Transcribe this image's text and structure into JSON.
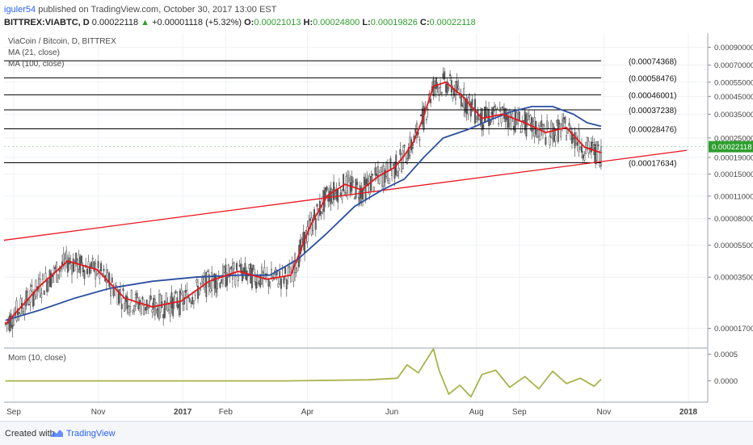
{
  "header": {
    "username": "iguler54",
    "published_text": " published on TradingView.com, October 30, 2017 13:00 EST",
    "symbol": "BITTREX:VIABTC, D",
    "last_price": "0.00022118",
    "change": "+0.00001118 (+5.32%)",
    "o_label": "O:",
    "o_value": "0.00021013",
    "h_label": "H:",
    "h_value": "0.00024800",
    "l_label": "L:",
    "l_value": "0.00019826",
    "c_label": "C:",
    "c_value": "0.00022118"
  },
  "legend": {
    "title": "ViaCoin / Bitcoin, D, BITTREX",
    "ma21": "MA (21, close)",
    "ma100": "MA (100, close)",
    "mom": "Mom (10, close)"
  },
  "footer": {
    "created_with": "Created with",
    "brand": "TradingView"
  },
  "colors": {
    "candle_up": "#3d3d3d",
    "candle_down": "#6a6a6a",
    "ma21": "#e8141c",
    "ma100": "#2b4fa0",
    "trendline": "#e8141c",
    "fib": "#000000",
    "momentum": "#a9b34a",
    "price_tag": "#2e9e2e"
  },
  "chart_data": [
    {
      "type": "line",
      "title": "ViaCoin / Bitcoin, D, BITTREX",
      "y_scale": "log",
      "ylim": [
        1.3e-05,
        0.0011
      ],
      "x_ticks": [
        "Sep",
        "Nov",
        "2017",
        "Feb",
        "Apr",
        "Jun",
        "Aug",
        "Sep",
        "Nov",
        "2018"
      ],
      "y_ticks": [
        "0.00090000",
        "0.00070000",
        "0.00055000",
        "0.00045000",
        "0.00035000",
        "0.00025000",
        "0.00019000",
        "0.00015000",
        "0.00011000",
        "0.00008000",
        "0.00005500",
        "0.00003500",
        "0.00001700"
      ],
      "last_price_label": "0.00022118",
      "levels": [
        {
          "label": "(0.00074368)",
          "value": 0.00074368
        },
        {
          "label": "(0.00058476)",
          "value": 0.00058476
        },
        {
          "label": "(0.00046001)",
          "value": 0.00046001
        },
        {
          "label": "(0.00037238)",
          "value": 0.00037238
        },
        {
          "label": "(0.00028476)",
          "value": 0.00028476
        },
        {
          "label": "(0.00017634)",
          "value": 0.00017634
        }
      ],
      "trendline": {
        "start": [
          "2016-08-25",
          5.9e-05
        ],
        "end": [
          "2017-12-31",
          0.00021
        ]
      },
      "series": [
        {
          "name": "MA (21, close)",
          "x": [
            "2016-08-26",
            "2016-09-20",
            "2016-10-10",
            "2016-10-31",
            "2016-11-20",
            "2016-12-10",
            "2016-12-31",
            "2017-01-20",
            "2017-02-10",
            "2017-03-03",
            "2017-03-20",
            "2017-04-03",
            "2017-04-15",
            "2017-04-28",
            "2017-05-10",
            "2017-05-22",
            "2017-06-03",
            "2017-06-10",
            "2017-06-17",
            "2017-06-24",
            "2017-07-01",
            "2017-07-10",
            "2017-07-22",
            "2017-08-05",
            "2017-08-20",
            "2017-09-05",
            "2017-09-20",
            "2017-10-05",
            "2017-10-18",
            "2017-10-30"
          ],
          "values": [
            1.8e-05,
            3.1e-05,
            4.4e-05,
            3.9e-05,
            2.6e-05,
            2.3e-05,
            2.5e-05,
            3.3e-05,
            3.8e-05,
            3.4e-05,
            3.6e-05,
            7.2e-05,
            0.00011,
            0.00013,
            0.00012,
            0.000145,
            0.000165,
            0.000195,
            0.00024,
            0.00034,
            0.00052,
            0.00055,
            0.00045,
            0.00033,
            0.00035,
            0.00031,
            0.00027,
            0.00029,
            0.00022,
            0.000203
          ]
        },
        {
          "name": "MA (100, close)",
          "x": [
            "2016-08-26",
            "2016-09-20",
            "2016-10-15",
            "2016-11-10",
            "2016-12-10",
            "2017-01-10",
            "2017-02-10",
            "2017-03-05",
            "2017-03-25",
            "2017-04-15",
            "2017-05-05",
            "2017-05-25",
            "2017-06-10",
            "2017-06-24",
            "2017-07-08",
            "2017-07-25",
            "2017-08-10",
            "2017-08-25",
            "2017-09-10",
            "2017-09-25",
            "2017-10-10",
            "2017-10-20",
            "2017-10-30"
          ],
          "values": [
            1.9e-05,
            2.2e-05,
            2.6e-05,
            3e-05,
            3.3e-05,
            3.5e-05,
            3.6e-05,
            3.6e-05,
            4.5e-05,
            6.5e-05,
            9.5e-05,
            0.00012,
            0.00014,
            0.00019,
            0.00025,
            0.00028,
            0.00032,
            0.00036,
            0.00039,
            0.00039,
            0.00035,
            0.00031,
            0.000295
          ]
        },
        {
          "name": "Mom (10, close)",
          "x": [
            "2016-08-26",
            "2016-12-01",
            "2017-03-15",
            "2017-05-15",
            "2017-06-05",
            "2017-06-12",
            "2017-06-20",
            "2017-07-01",
            "2017-07-05",
            "2017-07-12",
            "2017-07-20",
            "2017-07-28",
            "2017-08-05",
            "2017-08-15",
            "2017-08-25",
            "2017-09-05",
            "2017-09-15",
            "2017-09-25",
            "2017-10-05",
            "2017-10-15",
            "2017-10-25",
            "2017-10-30"
          ],
          "values": [
            0,
            0,
            0,
            2e-05,
            5e-05,
            0.0003,
            0.00015,
            0.0006,
            0.0002,
            -0.00025,
            -8e-05,
            -0.0003,
            0.00012,
            0.0002,
            -0.00012,
            8e-05,
            -0.00015,
            0.00018,
            -5e-05,
            5e-05,
            -0.0001,
            3e-05
          ]
        }
      ]
    },
    {
      "type": "line",
      "title": "Mom (10, close)",
      "ylim": [
        -0.0004,
        0.0006
      ],
      "y_ticks": [
        "0.0005",
        "0.0000"
      ]
    }
  ]
}
